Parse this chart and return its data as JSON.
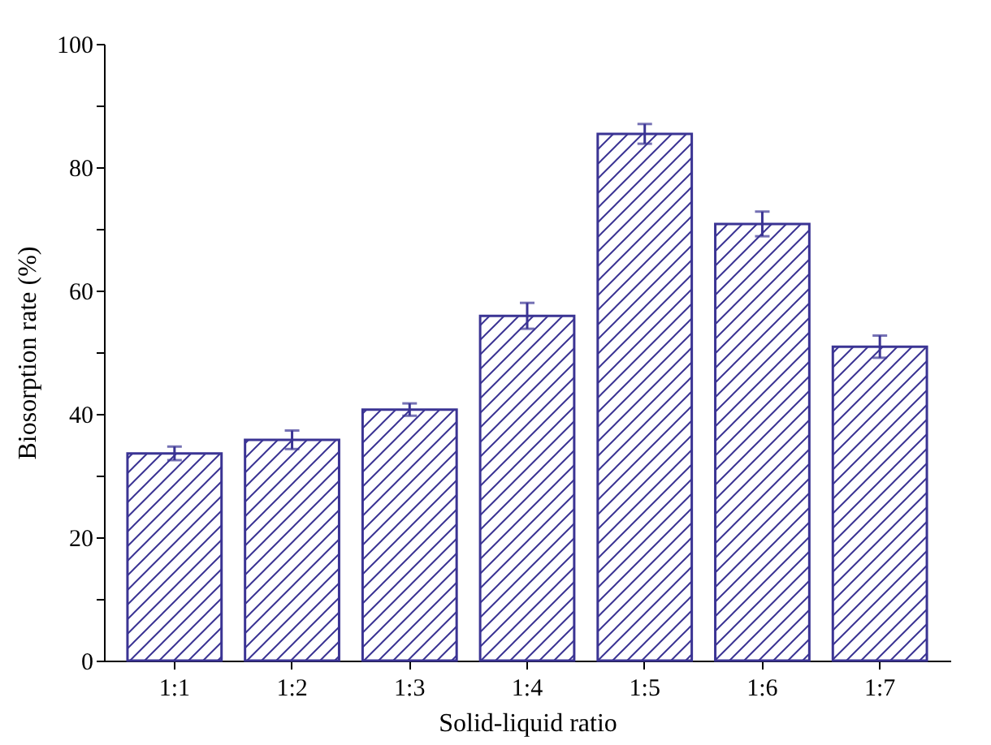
{
  "chart_data": {
    "type": "bar",
    "xlabel": "Solid-liquid ratio",
    "ylabel": "Biosorption rate (%)",
    "categories": [
      "1:1",
      "1:2",
      "1:3",
      "1:4",
      "1:5",
      "1:6",
      "1:7"
    ],
    "values": [
      33.6,
      35.8,
      40.7,
      55.9,
      85.4,
      70.8,
      50.9
    ],
    "errors": [
      1.1,
      1.5,
      1.0,
      2.1,
      1.6,
      2.0,
      1.8
    ],
    "color": "#3b3494",
    "ylim": [
      0,
      100
    ],
    "yticks": [
      0,
      {
        "value": 10,
        "label": null
      },
      20,
      {
        "value": 30,
        "label": null
      },
      40,
      {
        "value": 50,
        "label": null
      },
      60,
      {
        "value": 70,
        "label": null
      },
      80,
      {
        "value": 90,
        "label": null
      },
      100
    ],
    "grid": false
  }
}
